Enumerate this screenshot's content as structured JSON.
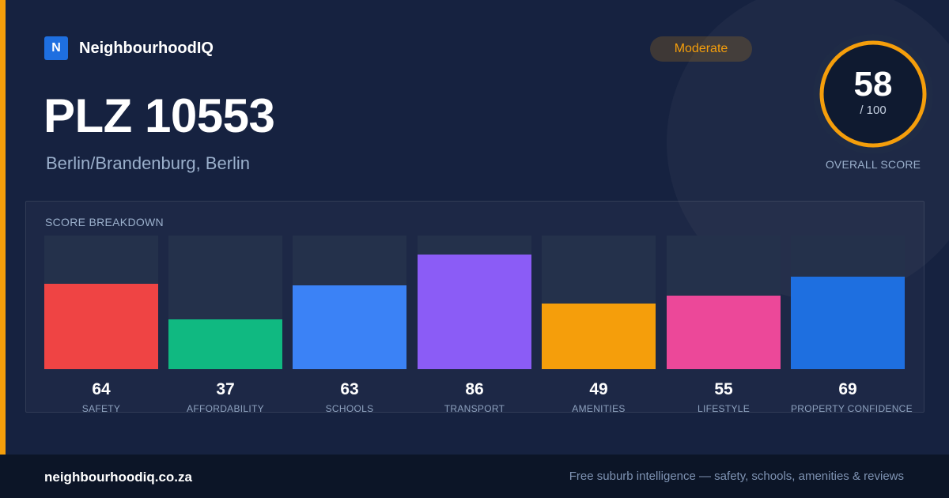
{
  "brand": {
    "logo_letter": "N",
    "name": "NeighbourhoodIQ"
  },
  "location": {
    "title": "PLZ 10553",
    "subtitle": "Berlin/Brandenburg, Berlin"
  },
  "rating": {
    "badge": "Moderate",
    "badge_color": "#f59e0b"
  },
  "overall": {
    "score": "58",
    "max": "/ 100",
    "fraction": 0.58,
    "label": "OVERALL SCORE",
    "ring_color": "#f59e0b"
  },
  "breakdown": {
    "title": "SCORE BREAKDOWN",
    "items": [
      {
        "label": "SAFETY",
        "value": "64",
        "score": 64,
        "color": "#ef4444"
      },
      {
        "label": "AFFORDABILITY",
        "value": "37",
        "score": 37,
        "color": "#10b981"
      },
      {
        "label": "SCHOOLS",
        "value": "63",
        "score": 63,
        "color": "#3b82f6"
      },
      {
        "label": "TRANSPORT",
        "value": "86",
        "score": 86,
        "color": "#8b5cf6"
      },
      {
        "label": "AMENITIES",
        "value": "49",
        "score": 49,
        "color": "#f59e0b"
      },
      {
        "label": "LIFESTYLE",
        "value": "55",
        "score": 55,
        "color": "#ec4899"
      },
      {
        "label": "PROPERTY CONFIDENCE",
        "value": "69",
        "score": 69,
        "color": "#1e6fe0"
      }
    ]
  },
  "footer": {
    "domain": "neighbourhoodiq.co.za",
    "tagline": "Free suburb intelligence — safety, schools, amenities & reviews"
  }
}
